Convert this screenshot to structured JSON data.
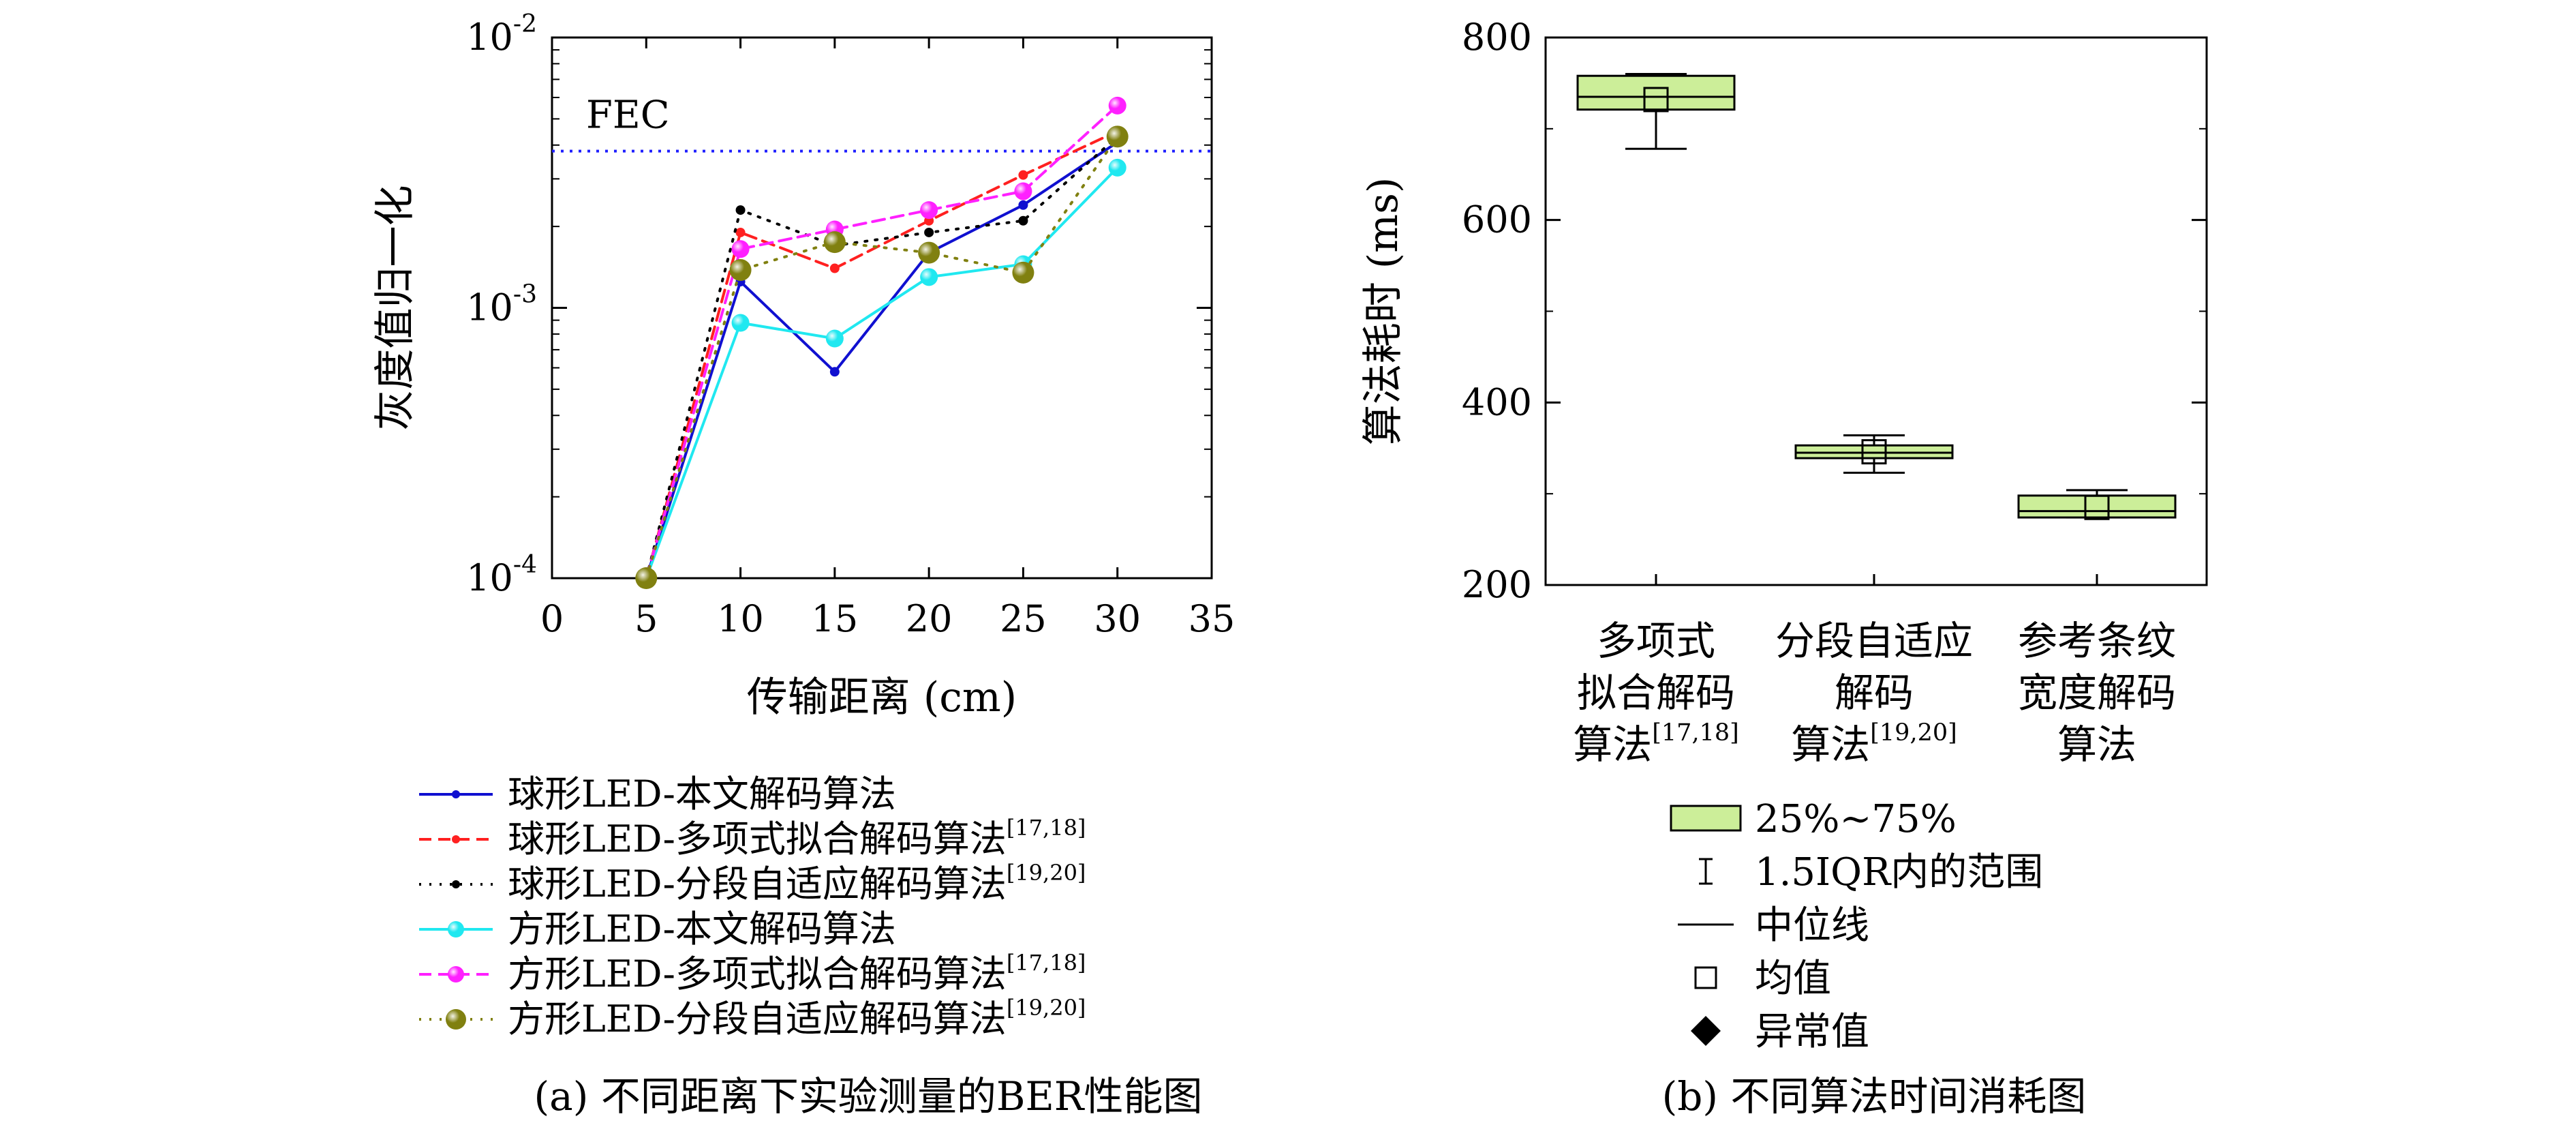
{
  "chart_data": [
    {
      "type": "line",
      "yscale": "log",
      "xlabel": "传输距离 (cm)",
      "ylabel": "灰度值归一化",
      "xlim": [
        0,
        35
      ],
      "ylim": [
        0.0001,
        0.01
      ],
      "xticks": [
        "0",
        "5",
        "10",
        "15",
        "20",
        "25",
        "30",
        "35"
      ],
      "yticks": [
        {
          "base": "10",
          "exp": "-4",
          "value": 0.0001
        },
        {
          "base": "10",
          "exp": "-3",
          "value": 0.001
        },
        {
          "base": "10",
          "exp": "-2",
          "value": 0.01
        }
      ],
      "caption": "(a) 不同距离下实验测量的BER性能图",
      "threshold": {
        "label": "FEC",
        "value": 0.0038,
        "color": "#1f1fff"
      },
      "legend_position": "below",
      "x": [
        5,
        10,
        15,
        20,
        25,
        30
      ],
      "series": [
        {
          "name": "球形LED-本文解码算法",
          "sup": "",
          "color": "#1010d0",
          "dash": "solid",
          "marker": "dot",
          "values": [
            0.0001,
            0.00125,
            0.00058,
            0.0016,
            0.0024,
            0.0041
          ]
        },
        {
          "name": "球形LED-多项式拟合解码算法",
          "sup": "[17,18]",
          "color": "#ff2020",
          "dash": "dashed",
          "marker": "dot",
          "values": [
            0.0001,
            0.0019,
            0.0014,
            0.0021,
            0.0031,
            0.0045
          ]
        },
        {
          "name": "球形LED-分段自适应解码算法",
          "sup": "[19,20]",
          "color": "#000000",
          "dash": "dotted",
          "marker": "dot",
          "values": [
            0.0001,
            0.0023,
            0.0017,
            0.0019,
            0.0021,
            0.0043
          ]
        },
        {
          "name": "方形LED-本文解码算法",
          "sup": "",
          "color": "#20e8f0",
          "dash": "solid",
          "marker": "ball",
          "values": [
            0.0001,
            0.00088,
            0.00077,
            0.0013,
            0.00145,
            0.0033
          ]
        },
        {
          "name": "方形LED-多项式拟合解码算法",
          "sup": "[17,18]",
          "color": "#ff20ff",
          "dash": "dashed",
          "marker": "ball",
          "values": [
            0.0001,
            0.00165,
            0.00195,
            0.0023,
            0.0027,
            0.0056
          ]
        },
        {
          "name": "方形LED-分段自适应解码算法",
          "sup": "[19,20]",
          "color": "#808010",
          "dash": "dotted",
          "marker": "bigball",
          "values": [
            0.0001,
            0.00138,
            0.00175,
            0.0016,
            0.00135,
            0.0043
          ]
        }
      ]
    },
    {
      "type": "box",
      "ylabel": "算法耗时 (ms)",
      "ylim": [
        200,
        800
      ],
      "yticks": [
        200,
        400,
        600,
        800
      ],
      "caption": "(b) 不同算法时间消耗图",
      "box_color": "#ccee99",
      "categories": [
        {
          "lines": [
            "多项式",
            "拟合解码",
            "算法"
          ],
          "sup": "[17,18]",
          "q1": 721,
          "median": 735,
          "q3": 758,
          "whisker_low": 678,
          "whisker_high": 760,
          "mean": 732
        },
        {
          "lines": [
            "分段自适应",
            "解码",
            "算法"
          ],
          "sup": "[19,20]",
          "q1": 339,
          "median": 345,
          "q3": 353,
          "whisker_low": 323,
          "whisker_high": 364,
          "mean": 346
        },
        {
          "lines": [
            "参考条纹",
            "宽度解码",
            "算法"
          ],
          "sup": "",
          "q1": 274,
          "median": 281,
          "q3": 298,
          "whisker_low": 274,
          "whisker_high": 304,
          "mean": 285
        }
      ],
      "legend_position": "below",
      "legend": [
        {
          "key": "box",
          "label": "25%~75%"
        },
        {
          "key": "whisker",
          "label": "1.5IQR内的范围"
        },
        {
          "key": "median",
          "label": "中位线"
        },
        {
          "key": "mean",
          "label": "均值"
        },
        {
          "key": "outlier",
          "label": "异常值"
        }
      ]
    }
  ]
}
